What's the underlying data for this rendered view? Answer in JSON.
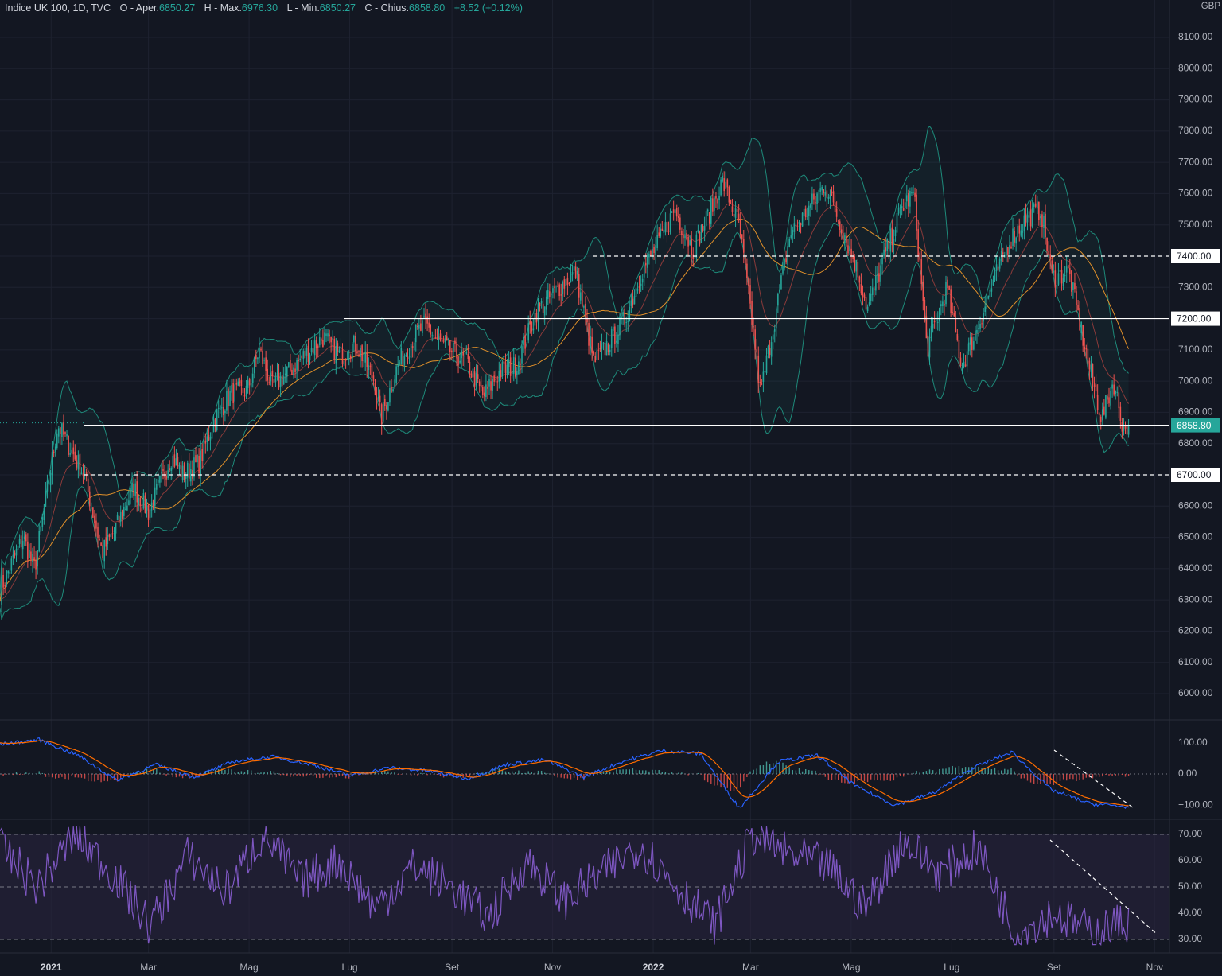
{
  "header": {
    "symbol": "Indice UK 100, 1D, TVC",
    "o_label": "O - Aper.",
    "o_value": "6850.27",
    "h_label": "H - Max.",
    "h_value": "6976.30",
    "l_label": "L - Min.",
    "l_value": "6850.27",
    "c_label": "C - Chius.",
    "c_value": "6858.80",
    "change": "+8.52 (+0.12%)"
  },
  "currency": "GBP",
  "colors": {
    "background": "#131722",
    "up": "#26a69a",
    "down": "#ef5350",
    "bollinger": "#1e8a7a",
    "ema_fast": "#8a3a3a",
    "sma_slow": "#e0902a",
    "macd": "#2962ff",
    "signal": "#ff6d00",
    "rsi": "#7e57c2",
    "rsi_band": "#2a2440",
    "price_tag": "#26a69a"
  },
  "chart_data": [
    {
      "type": "candlestick",
      "title": "Indice UK 100, 1D, TVC",
      "x_ticks": [
        "2021",
        "Mar",
        "Mag",
        "Lug",
        "Set",
        "Nov",
        "2022",
        "Mar",
        "Mag",
        "Lug",
        "Set",
        "Nov"
      ],
      "y_ticks": [
        "6000.00",
        "6100.00",
        "6200.00",
        "6300.00",
        "6400.00",
        "6500.00",
        "6600.00",
        "6700.00",
        "6800.00",
        "6900.00",
        "7000.00",
        "7100.00",
        "7200.00",
        "7300.00",
        "7400.00",
        "7500.00",
        "7600.00",
        "7700.00",
        "7800.00",
        "7900.00",
        "8000.00",
        "8100.00"
      ],
      "ylim": [
        5920,
        8130
      ],
      "last_price": 6858.8,
      "last_price_label": "6858.80",
      "horizontal_lines": [
        {
          "value": 7400,
          "label": "7400.00",
          "style": "dashed"
        },
        {
          "value": 7200,
          "label": "7200.00",
          "style": "solid"
        },
        {
          "value": 6858.8,
          "label": "6858.80",
          "style": "solid"
        },
        {
          "value": 6700,
          "label": "6700.00",
          "style": "dashed"
        }
      ],
      "close_path": [
        [
          "2020-12-01",
          6330
        ],
        [
          "2020-12-15",
          6500
        ],
        [
          "2020-12-22",
          6400
        ],
        [
          "2021-01-05",
          6860
        ],
        [
          "2021-01-12",
          6790
        ],
        [
          "2021-01-21",
          6700
        ],
        [
          "2021-02-01",
          6450
        ],
        [
          "2021-02-10",
          6540
        ],
        [
          "2021-02-20",
          6660
        ],
        [
          "2021-03-01",
          6580
        ],
        [
          "2021-03-15",
          6760
        ],
        [
          "2021-03-22",
          6700
        ],
        [
          "2021-04-01",
          6740
        ],
        [
          "2021-04-10",
          6880
        ],
        [
          "2021-04-20",
          6960
        ],
        [
          "2021-04-30",
          6970
        ],
        [
          "2021-05-07",
          7100
        ],
        [
          "2021-05-15",
          6980
        ],
        [
          "2021-05-25",
          7030
        ],
        [
          "2021-06-05",
          7090
        ],
        [
          "2021-06-15",
          7140
        ],
        [
          "2021-06-25",
          7080
        ],
        [
          "2021-07-05",
          7120
        ],
        [
          "2021-07-16",
          7000
        ],
        [
          "2021-07-20",
          6880
        ],
        [
          "2021-07-30",
          7050
        ],
        [
          "2021-08-10",
          7150
        ],
        [
          "2021-08-16",
          7180
        ],
        [
          "2021-08-25",
          7120
        ],
        [
          "2021-09-10",
          7060
        ],
        [
          "2021-09-20",
          6950
        ],
        [
          "2021-09-30",
          7030
        ],
        [
          "2021-10-10",
          7050
        ],
        [
          "2021-10-22",
          7220
        ],
        [
          "2021-11-05",
          7300
        ],
        [
          "2021-11-15",
          7350
        ],
        [
          "2021-11-26",
          7060
        ],
        [
          "2021-12-05",
          7120
        ],
        [
          "2021-12-15",
          7200
        ],
        [
          "2021-12-25",
          7350
        ],
        [
          "2022-01-05",
          7450
        ],
        [
          "2022-01-14",
          7550
        ],
        [
          "2022-01-25",
          7420
        ],
        [
          "2022-02-05",
          7550
        ],
        [
          "2022-02-12",
          7640
        ],
        [
          "2022-02-22",
          7500
        ],
        [
          "2022-03-03",
          7150
        ],
        [
          "2022-03-07",
          6960
        ],
        [
          "2022-03-15",
          7180
        ],
        [
          "2022-03-25",
          7470
        ],
        [
          "2022-04-05",
          7550
        ],
        [
          "2022-04-15",
          7630
        ],
        [
          "2022-04-25",
          7500
        ],
        [
          "2022-05-05",
          7350
        ],
        [
          "2022-05-11",
          7230
        ],
        [
          "2022-05-20",
          7380
        ],
        [
          "2022-06-01",
          7560
        ],
        [
          "2022-06-08",
          7600
        ],
        [
          "2022-06-16",
          7100
        ],
        [
          "2022-06-28",
          7300
        ],
        [
          "2022-07-07",
          7050
        ],
        [
          "2022-07-15",
          7150
        ],
        [
          "2022-07-25",
          7300
        ],
        [
          "2022-08-05",
          7450
        ],
        [
          "2022-08-15",
          7520
        ],
        [
          "2022-08-24",
          7550
        ],
        [
          "2022-08-31",
          7330
        ],
        [
          "2022-09-10",
          7350
        ],
        [
          "2022-09-22",
          7050
        ],
        [
          "2022-09-30",
          6880
        ],
        [
          "2022-10-07",
          7000
        ],
        [
          "2022-10-13",
          6850
        ],
        [
          "2022-10-17",
          6858.8
        ]
      ],
      "indicators": [
        "Bollinger Bands",
        "EMA",
        "SMA"
      ]
    },
    {
      "type": "line",
      "title": "MACD",
      "y_ticks": [
        "100.00",
        "0.00",
        "−100.00"
      ],
      "ylim": [
        -160,
        150
      ],
      "series": [
        {
          "values": [
            95,
            110,
            60,
            -20,
            30,
            -10,
            40,
            55,
            30,
            -5,
            20,
            10,
            -15,
            30,
            45,
            -10,
            40,
            75,
            65,
            -110,
            40,
            60,
            -40,
            -100,
            -60,
            20,
            70,
            -50,
            -95,
            -105
          ]
        }
      ],
      "histogram": true
    },
    {
      "type": "line",
      "title": "RSI",
      "y_ticks": [
        "70.00",
        "60.00",
        "50.00",
        "40.00",
        "30.00"
      ],
      "ylim": [
        25,
        74
      ],
      "bands": [
        30,
        50,
        70
      ],
      "series": [
        {
          "values": [
            65,
            50,
            70,
            55,
            35,
            62,
            48,
            70,
            52,
            60,
            42,
            58,
            50,
            38,
            60,
            45,
            55,
            66,
            50,
            35,
            70,
            62,
            58,
            42,
            68,
            55,
            65,
            32,
            40,
            33,
            37
          ]
        }
      ]
    }
  ]
}
